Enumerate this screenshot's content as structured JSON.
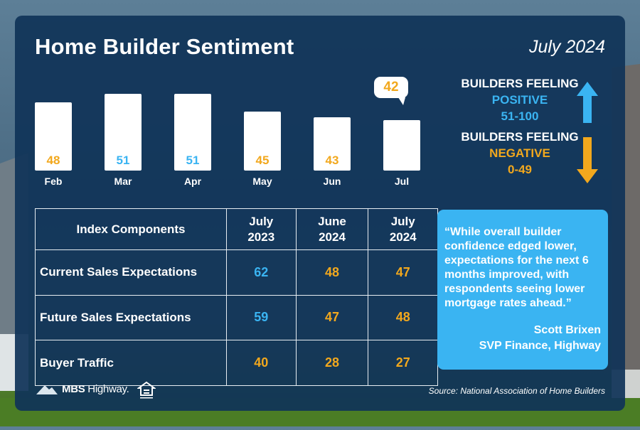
{
  "header": {
    "title": "Home Builder Sentiment",
    "date": "July 2024"
  },
  "chart_data": {
    "type": "bar",
    "categories": [
      "Feb",
      "Mar",
      "Apr",
      "May",
      "Jun",
      "Jul"
    ],
    "values": [
      48,
      51,
      51,
      45,
      43,
      42
    ],
    "title": "",
    "xlabel": "",
    "ylabel": "",
    "highlight": {
      "category": "Jul",
      "value_label": "42"
    }
  },
  "legend": {
    "positive": {
      "heading": "BUILDERS FEELING",
      "word": "POSITIVE",
      "range": "51-100",
      "color": "#3ab4f2"
    },
    "negative": {
      "heading": "BUILDERS FEELING",
      "word": "NEGATIVE",
      "range": "0-49",
      "color": "#f2a81d"
    }
  },
  "table": {
    "header_label": "Index Components",
    "columns": [
      {
        "line1": "July",
        "line2": "2023"
      },
      {
        "line1": "June",
        "line2": "2024"
      },
      {
        "line1": "July",
        "line2": "2024"
      }
    ],
    "rows": [
      {
        "label": "Current Sales Expectations",
        "values": [
          "62",
          "48",
          "47"
        ]
      },
      {
        "label": "Future Sales Expectations",
        "values": [
          "59",
          "47",
          "48"
        ]
      },
      {
        "label": "Buyer Traffic",
        "values": [
          "40",
          "28",
          "27"
        ]
      }
    ]
  },
  "quote": {
    "text": "“While overall builder confidence edged lower, expectations for the next 6 months improved, with respondents seeing lower mortgage rates ahead.”",
    "name": "Scott Brixen",
    "role": "SVP Finance, Highway"
  },
  "footer": {
    "logo_bold": "MBS",
    "logo_rest": " Highway.",
    "source": "Source: National Association of Home Builders"
  },
  "colors": {
    "positive": "#3ab4f2",
    "negative": "#f2a81d",
    "card": "#103458"
  }
}
